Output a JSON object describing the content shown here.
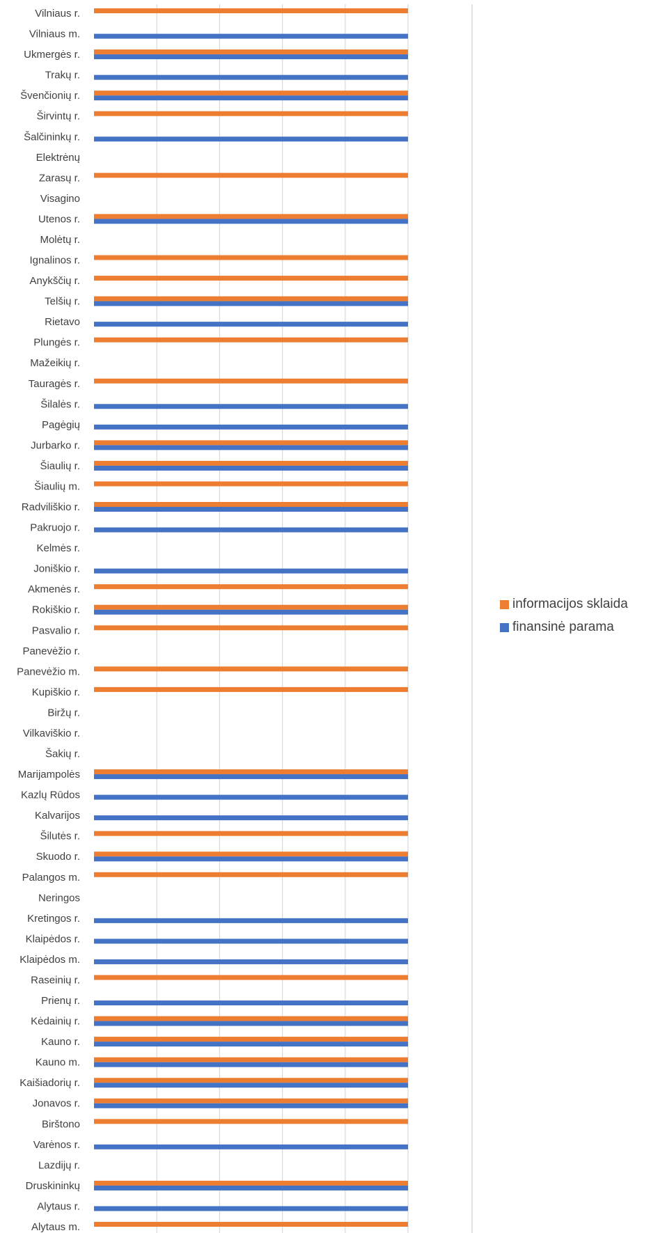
{
  "chart_data": {
    "type": "bar",
    "orientation": "horizontal",
    "xlim": [
      0,
      1
    ],
    "grid": true,
    "legend_position": "right",
    "categories": [
      "Vilniaus r.",
      "Vilniaus m.",
      "Ukmergės r.",
      "Trakų r.",
      "Švenčionių r.",
      "Širvintų r.",
      "Šalčininkų  r.",
      "Elektrėnų",
      "Zarasų r.",
      "Visagino",
      "Utenos r.",
      "Molėtų r.",
      "Ignalinos r.",
      "Anykščių r.",
      "Telšių r.",
      "Rietavo",
      "Plungės r.",
      "Mažeikių r.",
      "Tauragės r.",
      "Šilalės r.",
      "Pagėgių",
      "Jurbarko r.",
      "Šiaulių r.",
      "Šiaulių m.",
      "Radviliškio r.",
      "Pakruojo r.",
      "Kelmės r.",
      "Joniškio r.",
      "Akmenės r.",
      "Rokiškio r.",
      "Pasvalio r.",
      "Panevėžio r.",
      "Panevėžio m.",
      "Kupiškio r.",
      "Biržų r.",
      "Vilkaviškio r.",
      "Šakių r.",
      "Marijampolės",
      "Kazlų Rūdos",
      "Kalvarijos",
      "Šilutės r.",
      "Skuodo r.",
      "Palangos m.",
      "Neringos",
      "Kretingos r.",
      "Klaipėdos r.",
      "Klaipėdos m.",
      "Raseinių r.",
      "Prienų r.",
      "Kėdainių r.",
      "Kauno r.",
      "Kauno m.",
      "Kaišiadorių r.",
      "Jonavos r.",
      "Birštono",
      "Varėnos r.",
      "Lazdijų r.",
      "Druskininkų",
      "Alytaus r.",
      "Alytaus m."
    ],
    "series": [
      {
        "name": "informacijos sklaida",
        "color": "#ED7D31",
        "values": [
          1,
          0,
          1,
          0,
          1,
          1,
          0,
          0,
          1,
          0,
          1,
          0,
          1,
          1,
          1,
          0,
          1,
          0,
          1,
          0,
          0,
          1,
          1,
          1,
          1,
          0,
          0,
          0,
          1,
          1,
          1,
          0,
          1,
          1,
          0,
          0,
          0,
          1,
          0,
          0,
          1,
          1,
          1,
          0,
          0,
          0,
          0,
          1,
          0,
          1,
          1,
          1,
          1,
          1,
          1,
          0,
          0,
          1,
          0,
          1
        ]
      },
      {
        "name": "finansinė parama",
        "color": "#4472C4",
        "values": [
          0,
          1,
          1,
          1,
          1,
          0,
          1,
          0,
          0,
          0,
          1,
          0,
          0,
          0,
          1,
          1,
          0,
          0,
          0,
          1,
          1,
          1,
          1,
          0,
          1,
          1,
          0,
          1,
          0,
          1,
          0,
          0,
          0,
          0,
          0,
          0,
          0,
          1,
          1,
          1,
          0,
          1,
          0,
          0,
          1,
          1,
          1,
          0,
          1,
          1,
          1,
          1,
          1,
          1,
          0,
          1,
          0,
          1,
          1,
          0
        ]
      }
    ]
  }
}
